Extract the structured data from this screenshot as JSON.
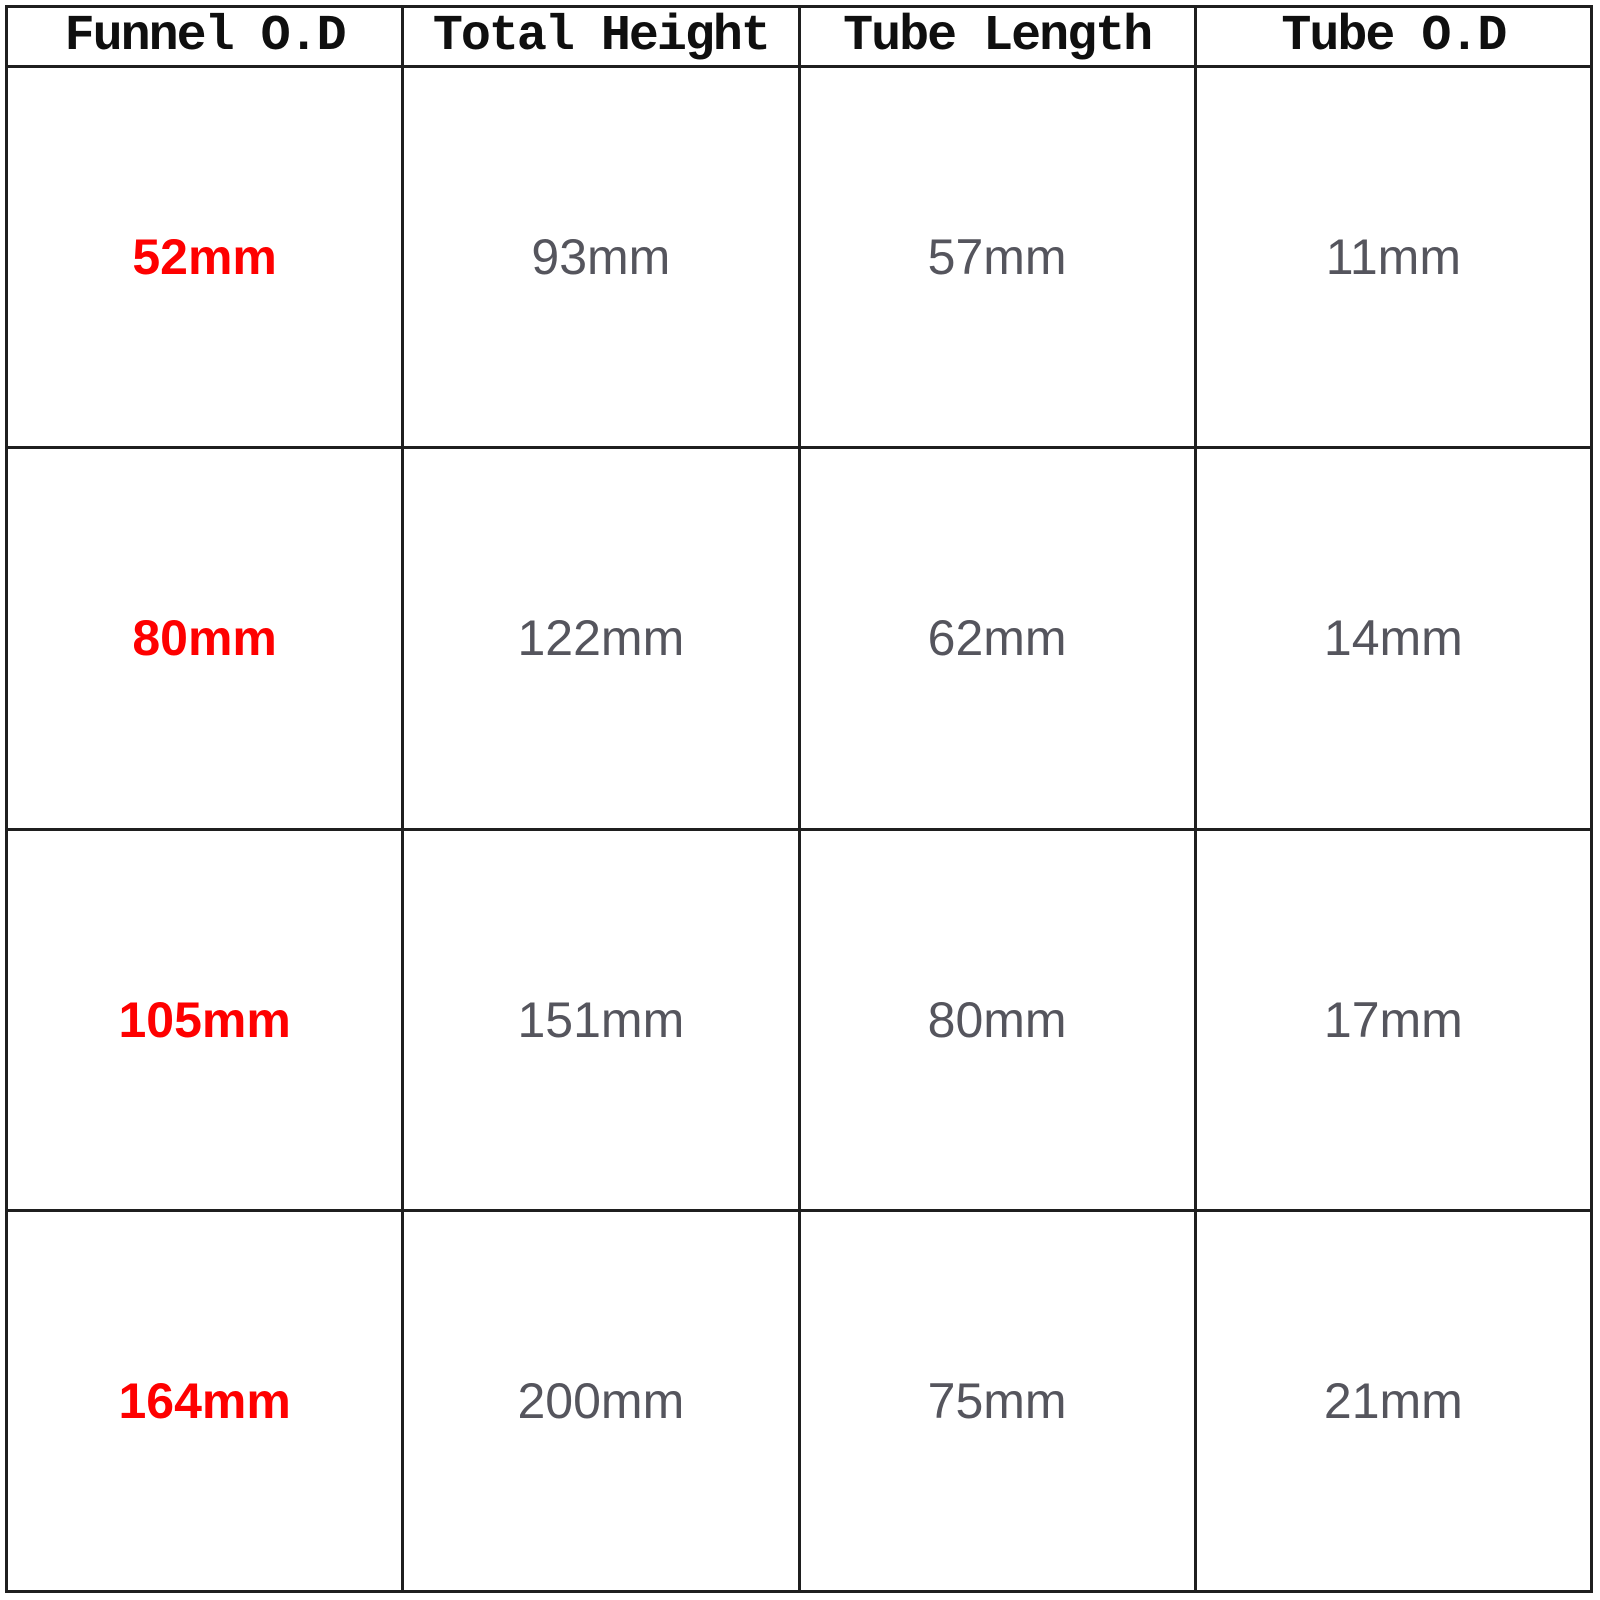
{
  "table": {
    "headers": [
      "Funnel O.D",
      "Total Height",
      "Tube Length",
      "Tube O.D"
    ],
    "rows": [
      {
        "funnel_od": "52mm",
        "total_height": "93mm",
        "tube_length": "57mm",
        "tube_od": "11mm"
      },
      {
        "funnel_od": "80mm",
        "total_height": "122mm",
        "tube_length": "62mm",
        "tube_od": "14mm"
      },
      {
        "funnel_od": "105mm",
        "total_height": "151mm",
        "tube_length": "80mm",
        "tube_od": "17mm"
      },
      {
        "funnel_od": "164mm",
        "total_height": "200mm",
        "tube_length": "75mm",
        "tube_od": "21mm"
      }
    ]
  },
  "colors": {
    "funnel_od_highlight": "#fe0000",
    "value_text": "#55555d",
    "header_text": "#0f0f0f",
    "grid_border": "#1f1f1f",
    "background": "#ffffff"
  },
  "chart_data": {
    "type": "table",
    "title": "",
    "columns": [
      "Funnel O.D",
      "Total Height",
      "Tube Length",
      "Tube O.D"
    ],
    "rows": [
      [
        "52mm",
        "93mm",
        "57mm",
        "11mm"
      ],
      [
        "80mm",
        "122mm",
        "62mm",
        "14mm"
      ],
      [
        "105mm",
        "151mm",
        "80mm",
        "17mm"
      ],
      [
        "164mm",
        "200mm",
        "75mm",
        "21mm"
      ]
    ],
    "layout_hints": {
      "grid": "on",
      "first_column_color": "#fe0000",
      "value_color": "#55555d",
      "header_style": "bold monospace",
      "rows_equal_height": true,
      "columns_equal_width": true
    }
  }
}
